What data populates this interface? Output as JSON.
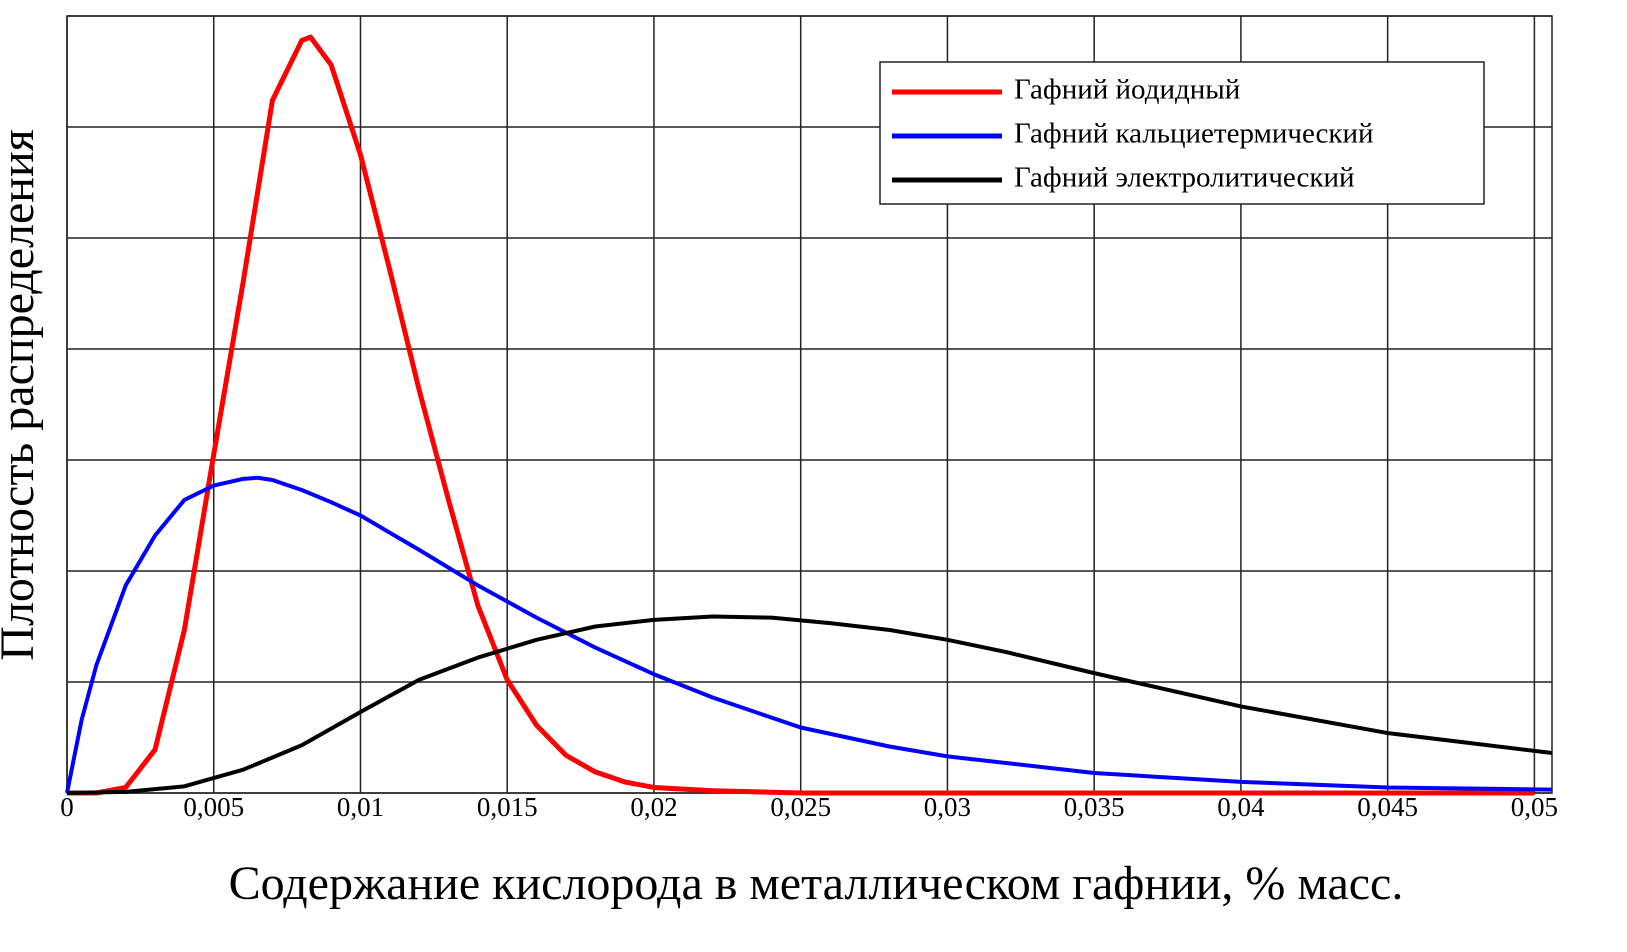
{
  "chart_data": {
    "type": "line",
    "x_label": "Содержание кислорода в металлическом гафнии, % масс.",
    "y_label": "Плотность распределения",
    "xlim": [
      0,
      0.0506
    ],
    "ylim": [
      0,
      7
    ],
    "xticks": [
      0,
      {
        "value": 0.005,
        "label": "0,005"
      },
      {
        "value": 0.01,
        "label": "0,01"
      },
      {
        "value": 0.015,
        "label": "0,015"
      },
      {
        "value": 0.02,
        "label": "0,02"
      },
      {
        "value": 0.025,
        "label": "0,025"
      },
      {
        "value": 0.03,
        "label": "0,03"
      },
      {
        "value": 0.035,
        "label": "0,035"
      },
      {
        "value": 0.04,
        "label": "0,04"
      },
      {
        "value": 0.045,
        "label": "0,045"
      },
      {
        "value": 0.05,
        "label": "0,05"
      }
    ],
    "ygrid": [
      0,
      1,
      2,
      3,
      4,
      5,
      6,
      7
    ],
    "grid": true,
    "legend_position": "upper right",
    "series": [
      {
        "name": "Гафний йодидный",
        "color": "#ff0000",
        "x": [
          0,
          0.001,
          0.002,
          0.003,
          0.004,
          0.005,
          0.006,
          0.007,
          0.008,
          0.0083,
          0.009,
          0.01,
          0.011,
          0.012,
          0.013,
          0.014,
          0.015,
          0.016,
          0.017,
          0.018,
          0.019,
          0.02,
          0.022,
          0.025,
          0.05
        ],
        "values": [
          0,
          0,
          0.05,
          0.39,
          1.47,
          3.05,
          4.6,
          6.24,
          6.78,
          6.81,
          6.56,
          5.75,
          4.71,
          3.63,
          2.64,
          1.69,
          1.02,
          0.61,
          0.34,
          0.19,
          0.1,
          0.05,
          0.02,
          0,
          0
        ]
      },
      {
        "name": "Гафний кальциетермический",
        "color": "#0000ff",
        "x": [
          0,
          0.0005,
          0.001,
          0.002,
          0.003,
          0.004,
          0.005,
          0.006,
          0.0065,
          0.007,
          0.008,
          0.009,
          0.01,
          0.012,
          0.014,
          0.016,
          0.018,
          0.02,
          0.022,
          0.025,
          0.028,
          0.03,
          0.035,
          0.04,
          0.045,
          0.0506
        ],
        "values": [
          0,
          0.66,
          1.15,
          1.87,
          2.32,
          2.64,
          2.77,
          2.83,
          2.84,
          2.82,
          2.73,
          2.62,
          2.5,
          2.19,
          1.87,
          1.58,
          1.31,
          1.07,
          0.86,
          0.59,
          0.42,
          0.33,
          0.18,
          0.1,
          0.05,
          0.03
        ]
      },
      {
        "name": "Гафний электролитический",
        "color": "#000000",
        "x": [
          0,
          0.002,
          0.004,
          0.006,
          0.008,
          0.01,
          0.012,
          0.014,
          0.016,
          0.018,
          0.02,
          0.022,
          0.024,
          0.026,
          0.028,
          0.03,
          0.032,
          0.035,
          0.04,
          0.045,
          0.0506
        ],
        "values": [
          0,
          0.01,
          0.06,
          0.21,
          0.43,
          0.73,
          1.02,
          1.22,
          1.38,
          1.5,
          1.56,
          1.59,
          1.58,
          1.53,
          1.47,
          1.38,
          1.27,
          1.08,
          0.78,
          0.54,
          0.36
        ]
      }
    ]
  }
}
